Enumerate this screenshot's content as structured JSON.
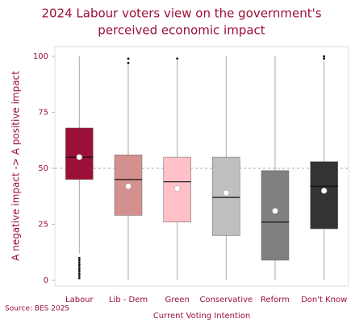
{
  "chart_data": {
    "type": "box",
    "title": [
      "2024 Labour voters view on the government's",
      "perceived economic impact"
    ],
    "x_label": "Current Voting Intention",
    "y_label": "A negative impact -> A positive impact",
    "source": "Source: BES 2025",
    "categories": [
      "Labour",
      "Lib - Dem",
      "Green",
      "Conservative",
      "Reform",
      "Don't Know"
    ],
    "colors": [
      "#9b1036",
      "#d4908f",
      "#ffc0c8",
      "#bfbfbf",
      "#808080",
      "#333333"
    ],
    "boxes": [
      {
        "min": 12,
        "q1": 45,
        "median": 55,
        "q3": 68,
        "max": 100,
        "mean": 55,
        "outliers": [
          1,
          2,
          3,
          4,
          5,
          6,
          7,
          8,
          9,
          10
        ]
      },
      {
        "min": 0,
        "q1": 29,
        "median": 45,
        "q3": 56,
        "max": 96,
        "mean": 42,
        "outliers": [
          97,
          99
        ]
      },
      {
        "min": 0,
        "q1": 26,
        "median": 44,
        "q3": 55,
        "max": 98,
        "mean": 41,
        "outliers": [
          99
        ]
      },
      {
        "min": 0,
        "q1": 20,
        "median": 37,
        "q3": 55,
        "max": 100,
        "mean": 39,
        "outliers": []
      },
      {
        "min": 0,
        "q1": 9,
        "median": 26,
        "q3": 49,
        "max": 100,
        "mean": 31,
        "outliers": []
      },
      {
        "min": 0,
        "q1": 23,
        "median": 42,
        "q3": 53,
        "max": 98,
        "mean": 40,
        "outliers": [
          99,
          100
        ]
      }
    ],
    "reference_line": 50,
    "ylim": [
      -2.5,
      104.3
    ],
    "yticks": [
      0,
      25,
      50,
      75,
      100
    ]
  }
}
